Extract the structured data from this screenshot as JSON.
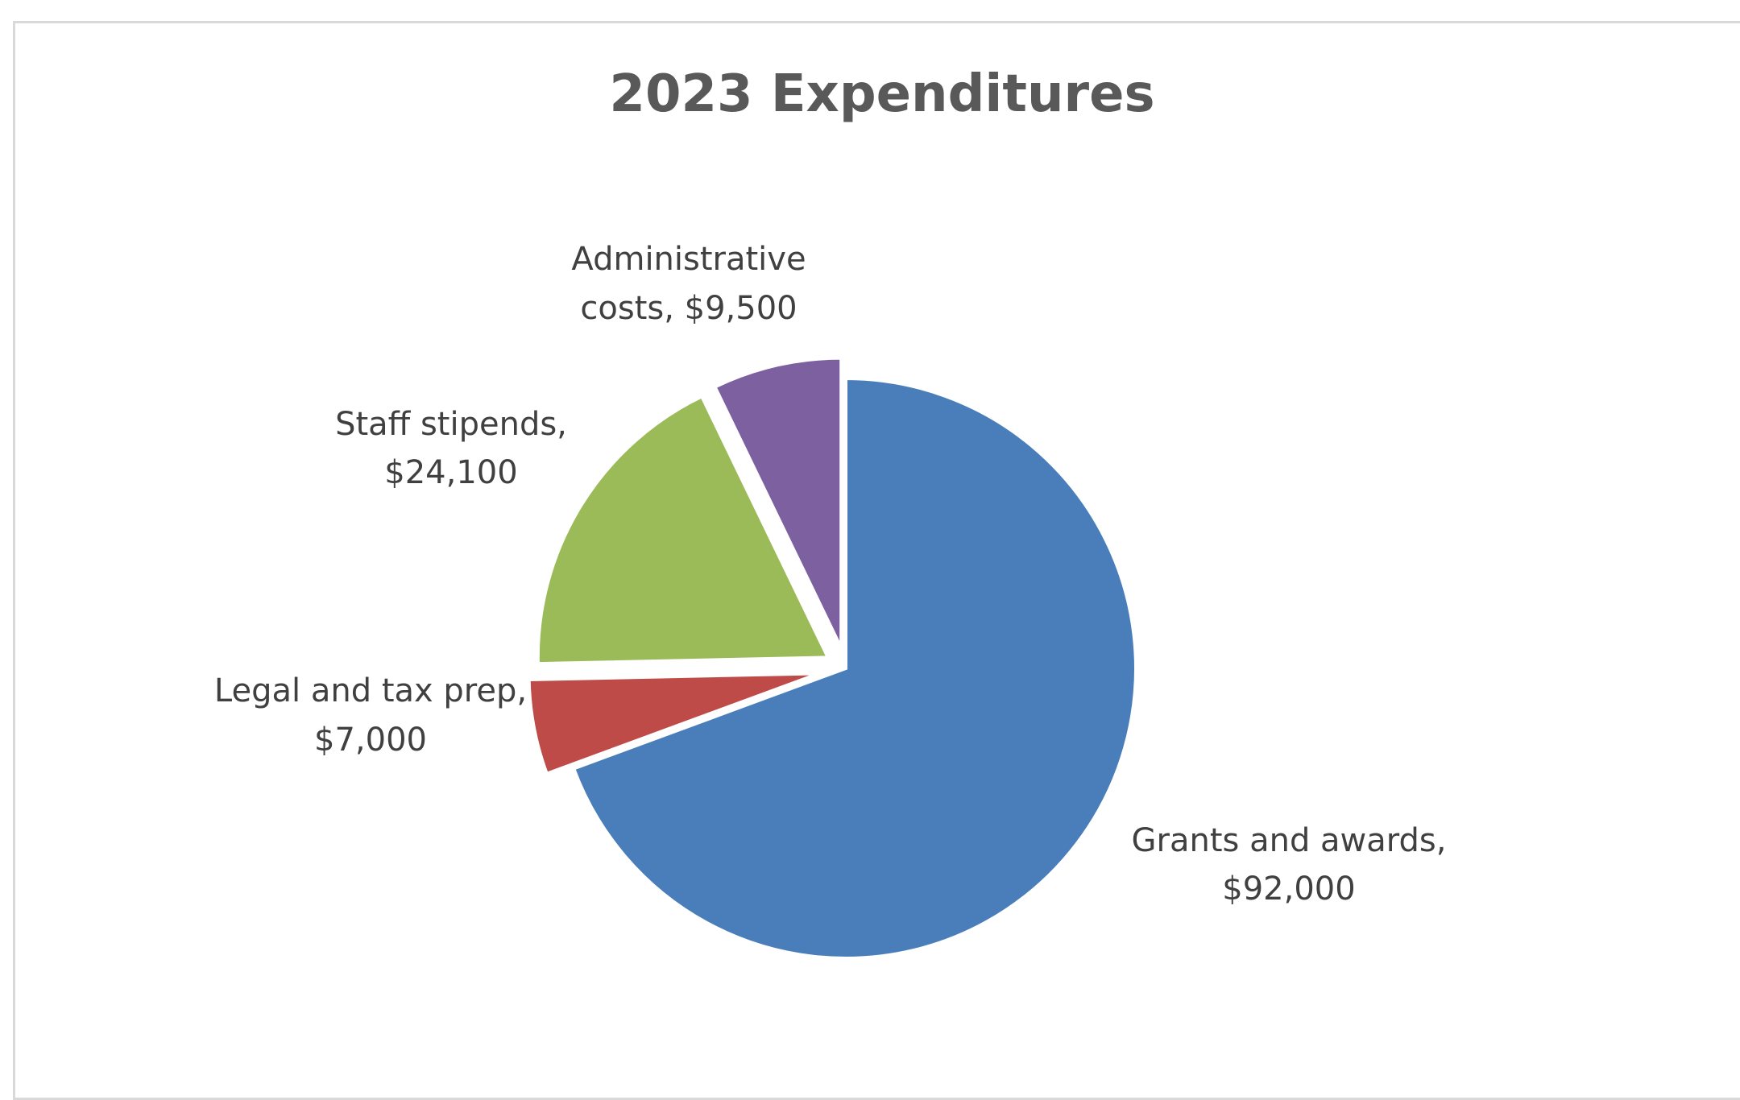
{
  "chart_data": {
    "type": "pie",
    "title": "2023 Expenditures",
    "slices": [
      {
        "name": "Grants and awards",
        "value": 92000,
        "label_line1": "Grants and awards,",
        "label_line2": "$92,000",
        "color": "#4a7ebb"
      },
      {
        "name": "Legal and tax prep",
        "value": 7000,
        "label_line1": "Legal and tax prep,",
        "label_line2": "$7,000",
        "color": "#be4b48"
      },
      {
        "name": "Staff stipends",
        "value": 24100,
        "label_line1": "Staff stipends,",
        "label_line2": "$24,100",
        "color": "#9bbb59"
      },
      {
        "name": "Administrative costs",
        "value": 9500,
        "label_line1": "Administrative",
        "label_line2": "costs, $9,500",
        "color": "#7d60a0"
      }
    ],
    "exploded": true,
    "legend": "none"
  }
}
